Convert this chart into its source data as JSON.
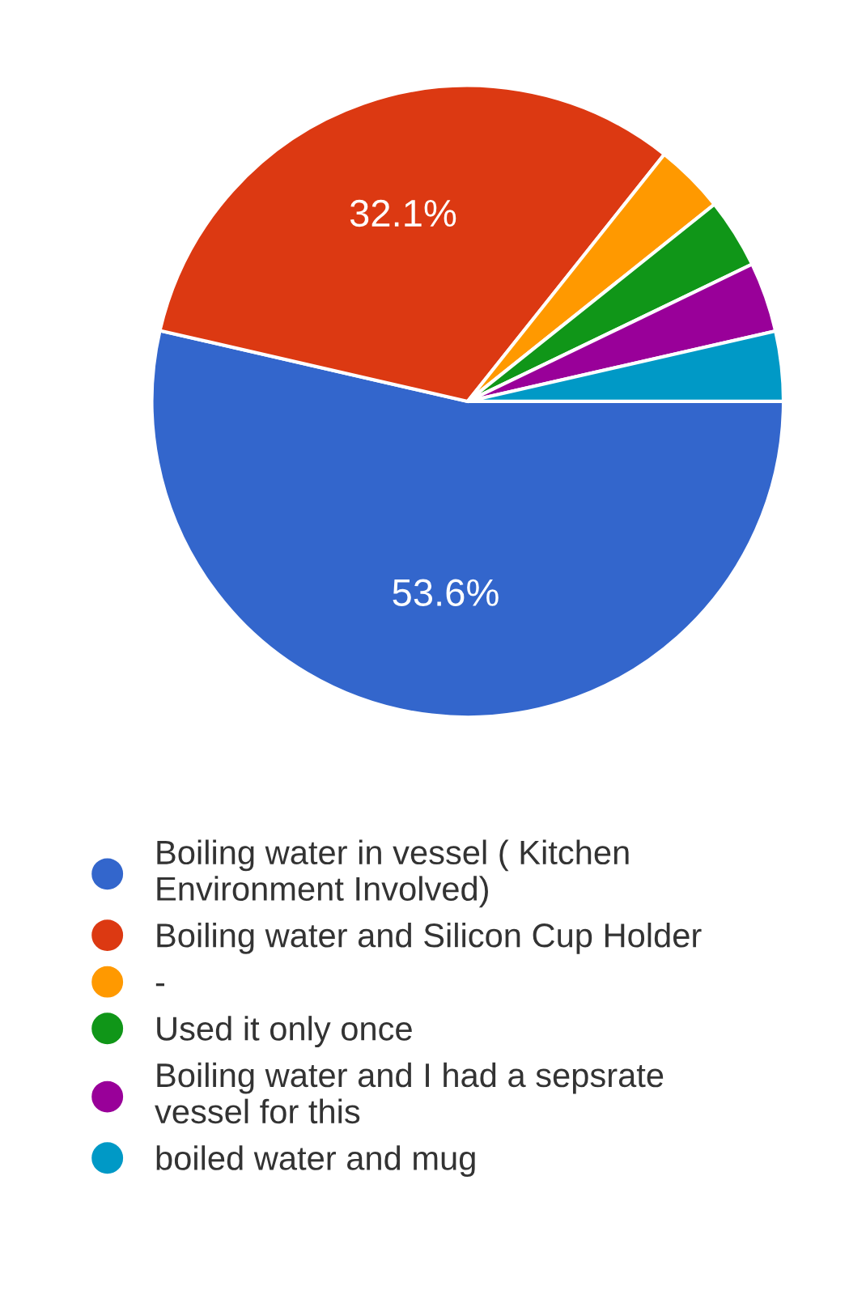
{
  "chart_data": {
    "type": "pie",
    "categories": [
      "Boiling water in vessel ( Kitchen Environment Involved)",
      "Boiling water and Silicon Cup Holder",
      "-",
      "Used it only once",
      "Boiling water and I had a sepsrate vessel for this",
      "boiled water and mug"
    ],
    "values": [
      53.6,
      32.1,
      3.575,
      3.575,
      3.575,
      3.575
    ],
    "colors": [
      "#3366cc",
      "#dc3912",
      "#ff9900",
      "#109618",
      "#990099",
      "#0099c6"
    ],
    "value_labels": [
      "53.6%",
      "32.1%",
      null,
      null,
      null,
      null
    ],
    "legend": "bottom"
  }
}
